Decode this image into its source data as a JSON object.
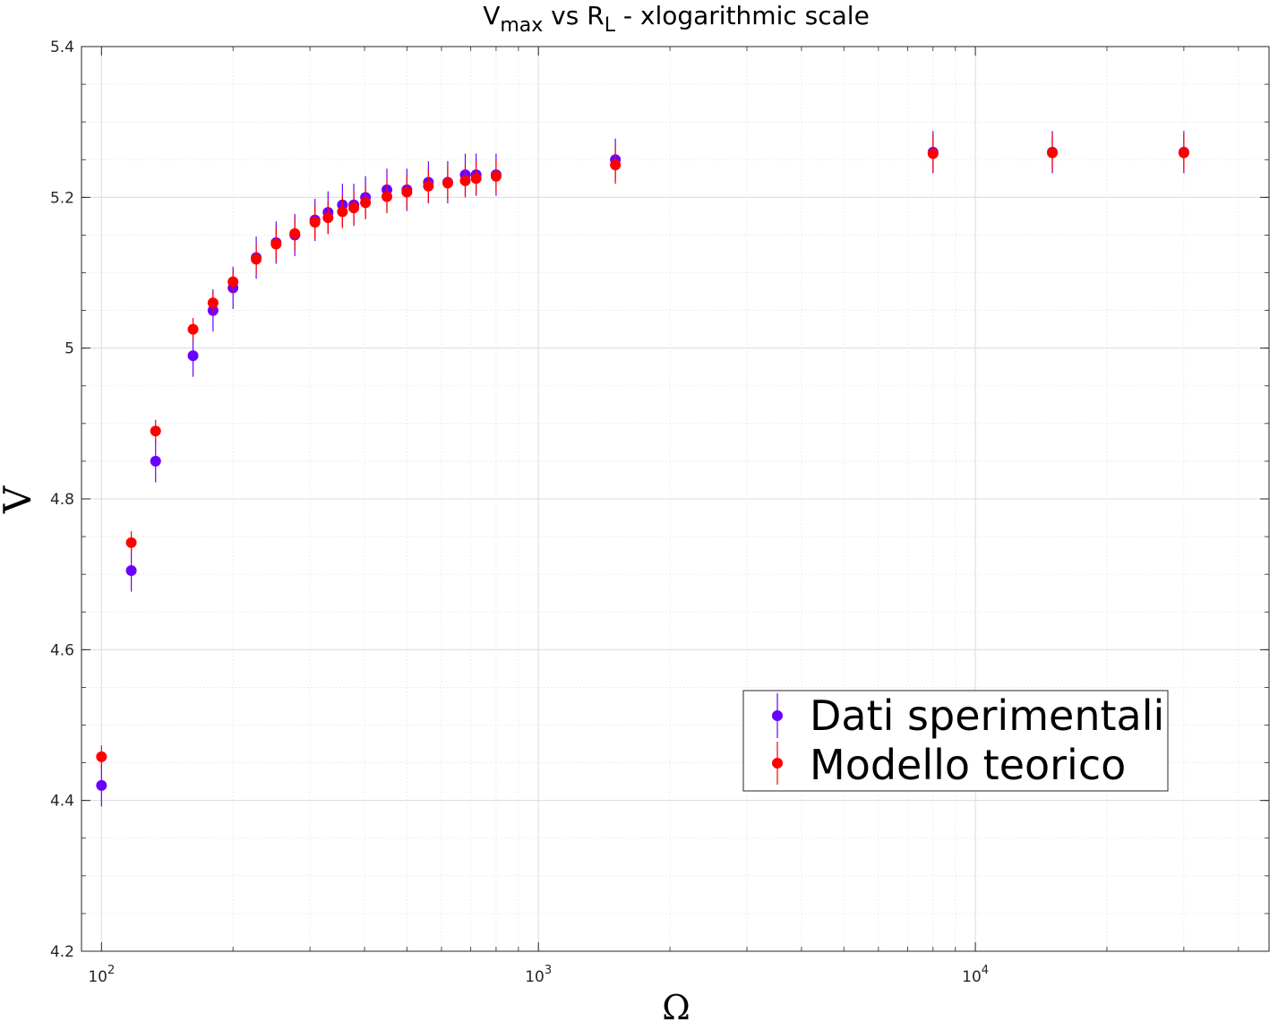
{
  "chart_data": {
    "type": "scatter",
    "title_parts": {
      "v": "V",
      "v_sub": "max",
      "mid": " vs R",
      "r_sub": "L",
      "tail": " - xlogarithmic scale"
    },
    "xlabel": "Ω",
    "ylabel": "V",
    "x_scale": "log",
    "xlim": [
      90,
      47000
    ],
    "ylim": [
      4.2,
      5.4
    ],
    "y_ticks": [
      4.2,
      4.4,
      4.6,
      4.8,
      5,
      5.2,
      5.4
    ],
    "y_tick_labels": [
      "4.2",
      "4.4",
      "4.6",
      "4.8",
      "5",
      "5.2",
      "5.4"
    ],
    "x_ticks": [
      {
        "value": 100,
        "base": "10",
        "exp": "2"
      },
      {
        "value": 1000,
        "base": "10",
        "exp": "3"
      },
      {
        "value": 10000,
        "base": "10",
        "exp": "4"
      }
    ],
    "grid": true,
    "legend_position": "bottom-right",
    "series": [
      {
        "name": "Dati sperimentali",
        "color": "#6a00ff",
        "x": [
          100,
          117,
          133,
          162,
          180,
          200,
          226,
          251,
          277,
          308,
          330,
          356,
          378,
          402,
          450,
          500,
          560,
          620,
          680,
          720,
          800,
          1500,
          8000,
          15000,
          30000
        ],
        "y": [
          4.42,
          4.705,
          4.85,
          4.99,
          5.05,
          5.08,
          5.12,
          5.14,
          5.15,
          5.17,
          5.18,
          5.19,
          5.19,
          5.2,
          5.21,
          5.21,
          5.22,
          5.22,
          5.23,
          5.23,
          5.23,
          5.25,
          5.26,
          5.26,
          5.26
        ],
        "err": [
          0.028,
          0.028,
          0.028,
          0.028,
          0.028,
          0.028,
          0.028,
          0.028,
          0.028,
          0.028,
          0.028,
          0.028,
          0.028,
          0.028,
          0.028,
          0.028,
          0.028,
          0.028,
          0.028,
          0.028,
          0.028,
          0.028,
          0.028,
          0.028,
          0.028
        ]
      },
      {
        "name": "Modello teorico",
        "color": "#ff0000",
        "x": [
          100,
          117,
          133,
          162,
          180,
          200,
          226,
          251,
          277,
          308,
          330,
          356,
          378,
          402,
          450,
          500,
          560,
          620,
          680,
          720,
          800,
          1500,
          8000,
          15000,
          30000
        ],
        "y": [
          4.458,
          4.742,
          4.89,
          5.025,
          5.06,
          5.088,
          5.118,
          5.138,
          5.152,
          5.167,
          5.173,
          5.181,
          5.186,
          5.193,
          5.201,
          5.207,
          5.215,
          5.219,
          5.222,
          5.225,
          5.228,
          5.243,
          5.258,
          5.259,
          5.259
        ],
        "err": [
          0.015,
          0.015,
          0.015,
          0.015,
          0.015,
          0.015,
          0.02,
          0.022,
          0.022,
          0.022,
          0.022,
          0.022,
          0.022,
          0.022,
          0.022,
          0.022,
          0.022,
          0.022,
          0.022,
          0.022,
          0.022,
          0.025,
          0.025,
          0.025,
          0.025
        ]
      }
    ]
  }
}
